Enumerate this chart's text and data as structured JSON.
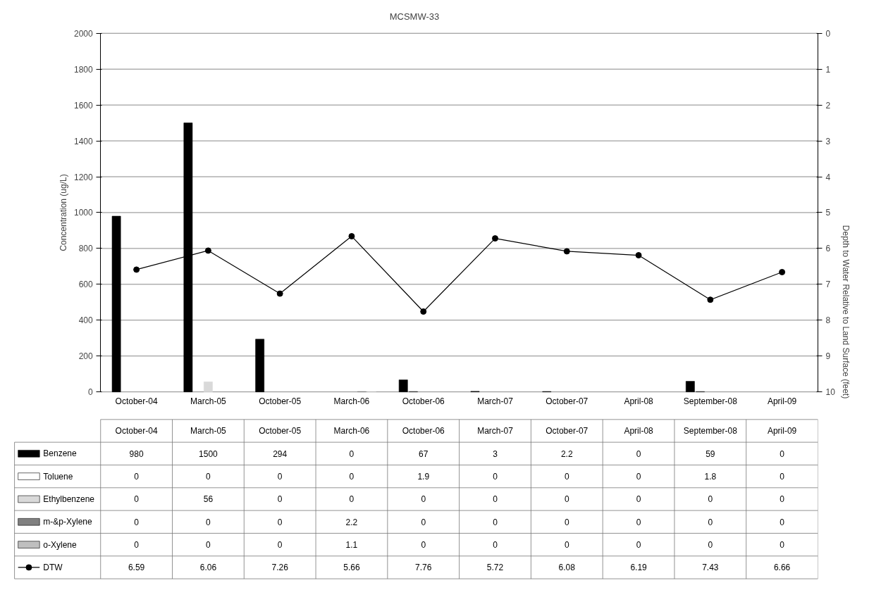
{
  "chart_data": {
    "type": "bar",
    "title": "MCSMW-33",
    "ylabel": "Concentration (ug/L)",
    "y2label": "Depth to Water Relative to Land Surface (feet)",
    "categories": [
      "October-04",
      "March-05",
      "October-05",
      "March-06",
      "October-06",
      "March-07",
      "October-07",
      "April-08",
      "September-08",
      "April-09"
    ],
    "series": [
      {
        "name": "Benzene",
        "color": "#000000",
        "values": [
          980,
          1500,
          294,
          0,
          67,
          3,
          2.2,
          0,
          59,
          0
        ]
      },
      {
        "name": "Toluene",
        "color": "#ffffff",
        "values": [
          0,
          0,
          0,
          0,
          1.9,
          0,
          0,
          0,
          1.8,
          0
        ]
      },
      {
        "name": "Ethylbenzene",
        "color": "#d9d9d9",
        "values": [
          0,
          56,
          0,
          0,
          0,
          0,
          0,
          0,
          0,
          0
        ]
      },
      {
        "name": "m-&p-Xylene",
        "color": "#808080",
        "values": [
          0,
          0,
          0,
          2.2,
          0,
          0,
          0,
          0,
          0,
          0
        ]
      },
      {
        "name": "o-Xylene",
        "color": "#bfbfbf",
        "values": [
          0,
          0,
          0,
          1.1,
          0,
          0,
          0,
          0,
          0,
          0
        ]
      },
      {
        "name": "DTW",
        "color": "#000000",
        "type": "line",
        "axis": "y2",
        "marker": "circle",
        "values": [
          6.59,
          6.06,
          7.26,
          5.66,
          7.76,
          5.72,
          6.08,
          6.19,
          7.43,
          6.66
        ]
      }
    ],
    "ylim": [
      0,
      2000
    ],
    "yticks": [
      0,
      200,
      400,
      600,
      800,
      1000,
      1200,
      1400,
      1600,
      1800,
      2000
    ],
    "y2lim": [
      10,
      0
    ],
    "y2ticks": [
      0,
      1,
      2,
      3,
      4,
      5,
      6,
      7,
      8,
      9,
      10
    ],
    "grid": "y",
    "legend": "bottom",
    "data_labels": true
  }
}
